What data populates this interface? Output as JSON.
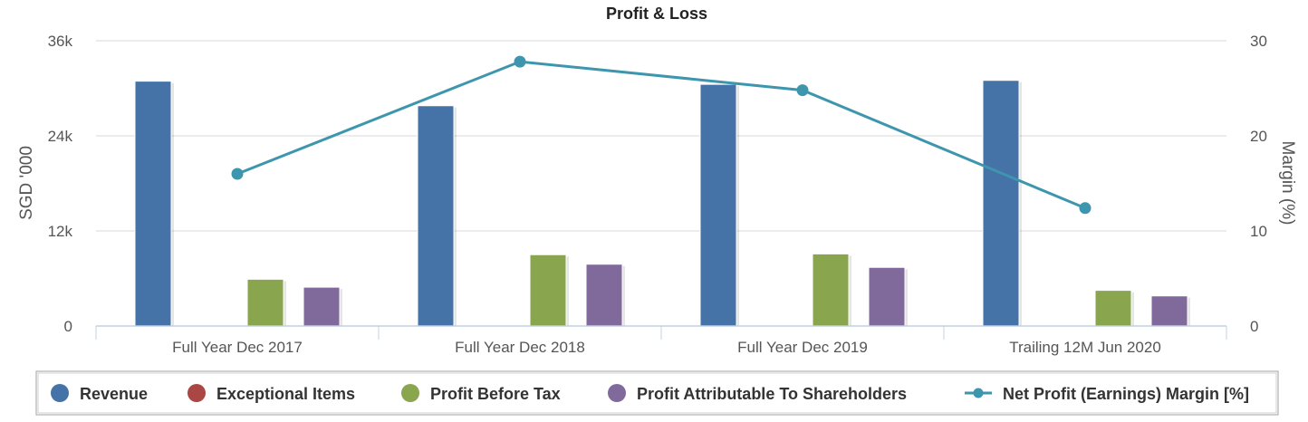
{
  "chart_data": {
    "type": "bar",
    "title": "Profit & Loss",
    "categories": [
      "Full Year Dec 2017",
      "Full Year Dec 2018",
      "Full Year Dec 2019",
      "Trailing 12M Jun 2020"
    ],
    "y_left": {
      "label": "SGD '000",
      "ylim": [
        0,
        36000
      ],
      "ticks": [
        0,
        12000,
        24000,
        36000
      ],
      "tick_labels": [
        "0",
        "12k",
        "24k",
        "36k"
      ]
    },
    "y_right": {
      "label": "Margin (%)",
      "ylim": [
        0,
        30
      ],
      "ticks": [
        0,
        10,
        20,
        30
      ],
      "tick_labels": [
        "0",
        "10",
        "20",
        "30"
      ]
    },
    "grid": true,
    "legend_position": "bottom",
    "series": [
      {
        "name": "Revenue",
        "type": "bar",
        "axis": "left",
        "color": "#4572a7",
        "values": [
          30900,
          27800,
          30500,
          31000
        ]
      },
      {
        "name": "Exceptional Items",
        "type": "bar",
        "axis": "left",
        "color": "#aa4643",
        "values": [
          0,
          0,
          0,
          0
        ]
      },
      {
        "name": "Profit Before Tax",
        "type": "bar",
        "axis": "left",
        "color": "#89a54e",
        "values": [
          5900,
          9000,
          9100,
          4500
        ]
      },
      {
        "name": "Profit Attributable To Shareholders",
        "type": "bar",
        "axis": "left",
        "color": "#80699b",
        "values": [
          4900,
          7800,
          7400,
          3800
        ]
      },
      {
        "name": "Net Profit (Earnings) Margin [%]",
        "type": "line",
        "axis": "right",
        "color": "#3d96ae",
        "values": [
          16.0,
          27.8,
          24.8,
          12.4
        ]
      }
    ]
  }
}
